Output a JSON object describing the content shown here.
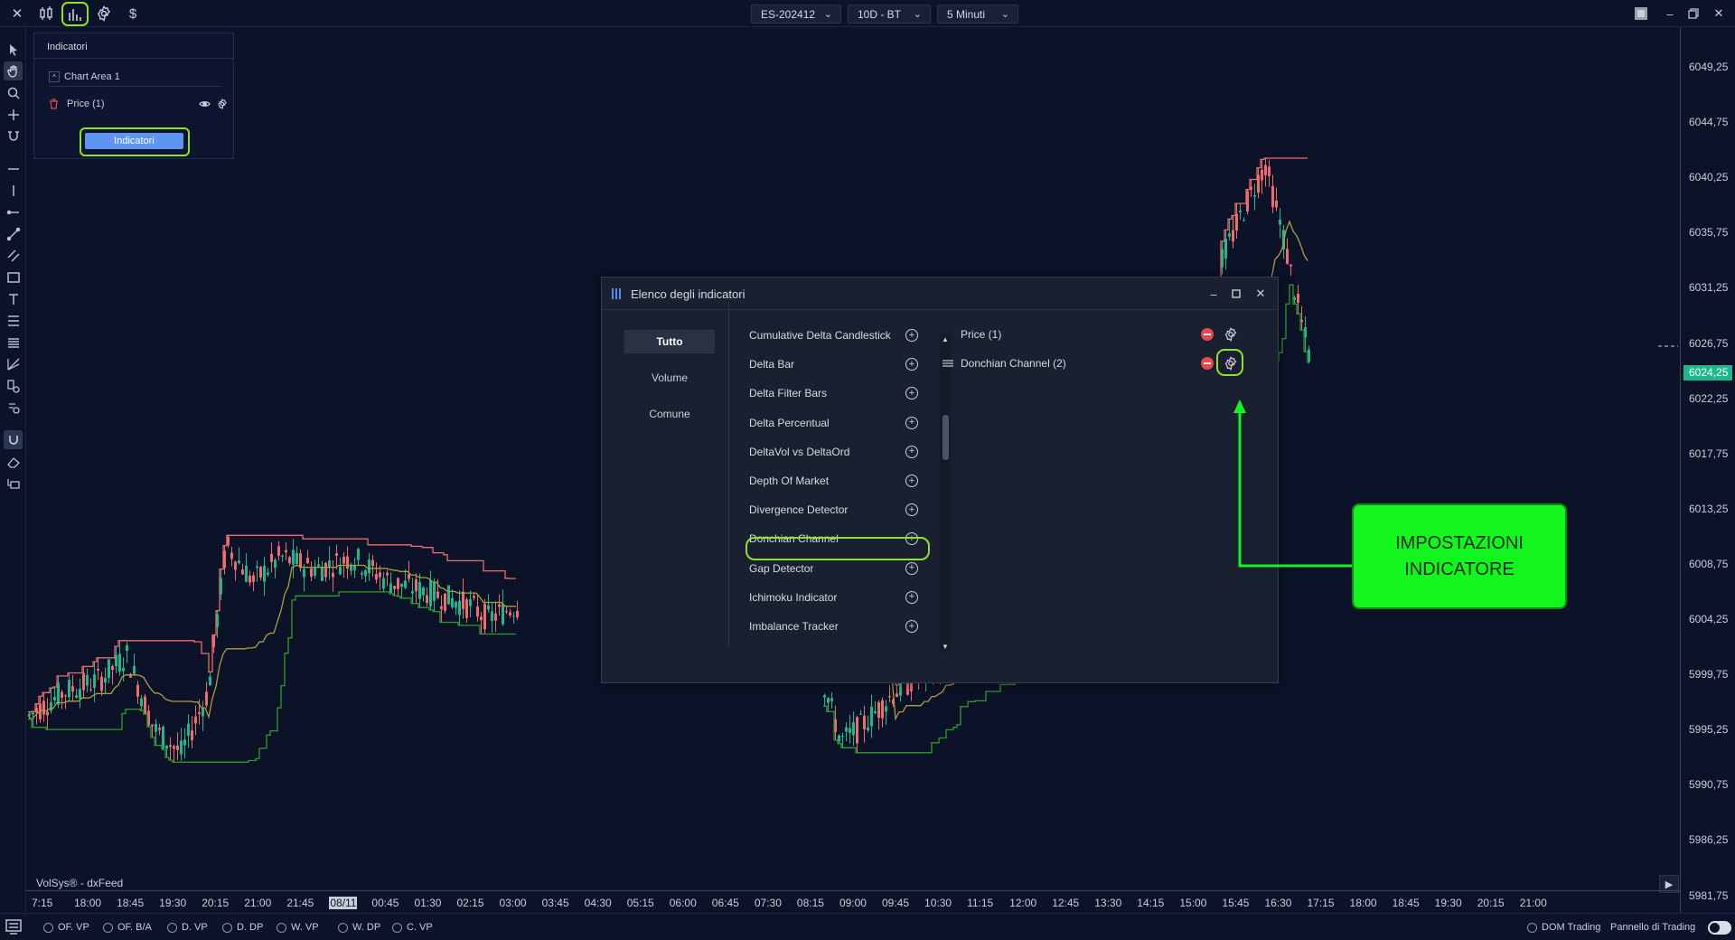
{
  "toolbar": {
    "symbol": "ES-202412",
    "range": "10D - BT",
    "timeframe": "5 Minuti",
    "currency_symbol": "$",
    "close_symbol": "✕"
  },
  "indicator_panel": {
    "title": "Indicatori",
    "chart_area_label": "Chart Area 1",
    "price_label": "Price (1)",
    "button_label": "Indicatori"
  },
  "modal": {
    "title": "Elenco degli indicatori",
    "categories": [
      {
        "label": "Tutto",
        "active": true
      },
      {
        "label": "Volume",
        "active": false
      },
      {
        "label": "Comune",
        "active": false
      }
    ],
    "indicators": [
      "Cumulative Delta Candlestick",
      "Delta Bar",
      "Delta Filter Bars",
      "Delta Percentual",
      "DeltaVol vs DeltaOrd",
      "Depth Of Market",
      "Divergence Detector",
      "Donchian Channel",
      "Gap Detector",
      "Ichimoku Indicator",
      "Imbalance Tracker"
    ],
    "highlighted_indicator": "Donchian Channel",
    "selected": [
      {
        "label": "Price (1)"
      },
      {
        "label": "Donchian Channel (2)"
      }
    ]
  },
  "callout": {
    "line1": "IMPOSTAZIONI",
    "line2": "INDICATORE",
    "color": "#12f51e"
  },
  "price_axis": {
    "labels": [
      "6049,25",
      "6044,75",
      "6040,25",
      "6035,75",
      "6031,25",
      "6026,75",
      "6022,25",
      "6017,75",
      "6013,25",
      "6008,75",
      "6004,25",
      "5999,75",
      "5995,25",
      "5990,75",
      "5986,25",
      "5981,75"
    ],
    "current": "6024,25"
  },
  "time_axis": {
    "labels": [
      "7:15",
      "18:00",
      "18:45",
      "19:30",
      "20:15",
      "21:00",
      "21:45",
      "08/11",
      "00:45",
      "01:30",
      "02:15",
      "03:00",
      "03:45",
      "04:30",
      "05:15",
      "06:00",
      "06:45",
      "07:30",
      "08:15",
      "09:00",
      "09:45",
      "10:30",
      "11:15",
      "12:00",
      "12:45",
      "13:30",
      "14:15",
      "15:00",
      "15:45",
      "16:30",
      "17:15",
      "18:00",
      "18:45",
      "19:30",
      "20:15",
      "21:00"
    ],
    "highlight": "08/11"
  },
  "feed_label": "VolSys® - dxFeed",
  "bottom_bar": {
    "options": [
      "OF. VP",
      "OF. B/A",
      "D. VP",
      "D. DP",
      "W. VP",
      "W. DP",
      "C. VP"
    ],
    "dom_trading": "DOM Trading",
    "panel_label": "Pannello di Trading"
  },
  "colors": {
    "background": "#0c1228",
    "upper_band": "#f06b6b",
    "middle_band": "#a8a040",
    "lower_band": "#2f9a2a",
    "candle_up": "#1fb88a",
    "candle_down": "#f06b6b",
    "highlight": "#8ee22a"
  }
}
